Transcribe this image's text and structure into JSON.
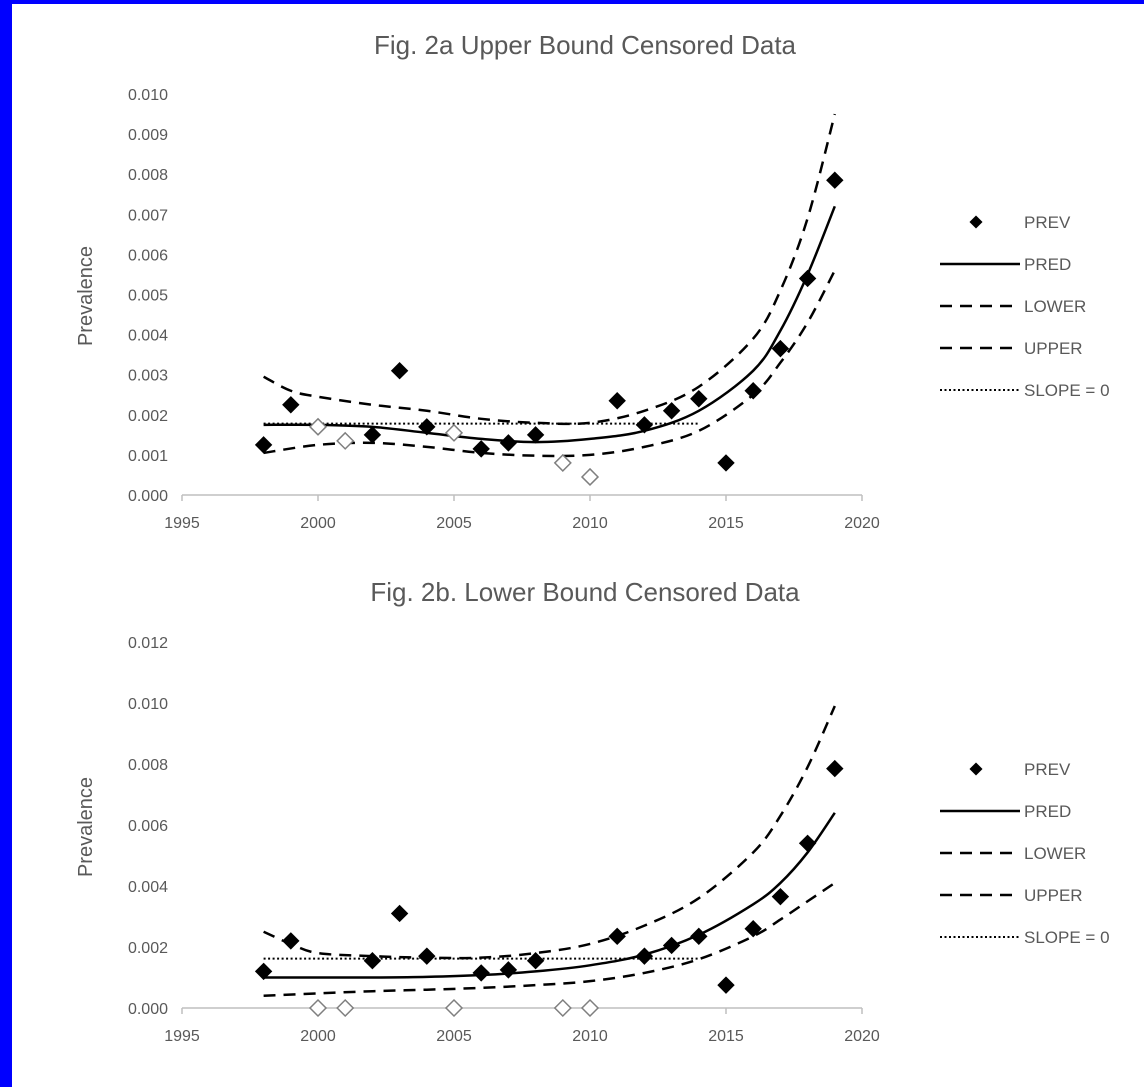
{
  "colors": {
    "background": "#0000ff",
    "panel": "#ffffff",
    "text": "#595959",
    "axis": "#bfbfbf",
    "ink": "#000000"
  },
  "chart_data": [
    {
      "type": "scatter",
      "title": "Fig. 2a Upper Bound Censored Data",
      "xlabel": "",
      "ylabel": "Prevalence",
      "xlim": [
        1995,
        2020
      ],
      "ylim": [
        0,
        0.01
      ],
      "xticks": [
        "1995",
        "2000",
        "2005",
        "2010",
        "2015",
        "2020"
      ],
      "yticks": [
        "0.000",
        "0.001",
        "0.002",
        "0.003",
        "0.004",
        "0.005",
        "0.006",
        "0.007",
        "0.008",
        "0.009",
        "0.010"
      ],
      "grid": false,
      "legend_position": "right",
      "series": [
        {
          "name": "PREV",
          "kind": "filled-diamond",
          "x": [
            1998,
            1999,
            2002,
            2003,
            2004,
            2006,
            2007,
            2008,
            2011,
            2012,
            2013,
            2014,
            2015,
            2016,
            2017,
            2018,
            2019
          ],
          "y": [
            0.00125,
            0.00225,
            0.0015,
            0.0031,
            0.0017,
            0.00115,
            0.0013,
            0.0015,
            0.00235,
            0.00175,
            0.0021,
            0.0024,
            0.0008,
            0.0026,
            0.00365,
            0.0054,
            0.00785
          ]
        },
        {
          "name": "",
          "kind": "open-diamond",
          "x": [
            2000,
            2001,
            2005,
            2009,
            2010
          ],
          "y": [
            0.0017,
            0.00135,
            0.00155,
            0.0008,
            0.00045
          ]
        },
        {
          "name": "PRED",
          "kind": "solid",
          "x": [
            1998,
            2000,
            2002,
            2004,
            2006,
            2008,
            2010,
            2012,
            2014,
            2016,
            2017,
            2018,
            2019
          ],
          "y": [
            0.00175,
            0.00175,
            0.0017,
            0.00155,
            0.0014,
            0.00132,
            0.0014,
            0.0016,
            0.0021,
            0.0031,
            0.0041,
            0.0055,
            0.0072
          ]
        },
        {
          "name": "LOWER",
          "kind": "dashed",
          "x": [
            1998,
            2000,
            2002,
            2004,
            2006,
            2008,
            2010,
            2012,
            2014,
            2016,
            2017,
            2018,
            2019
          ],
          "y": [
            0.00105,
            0.00125,
            0.0013,
            0.0012,
            0.00105,
            0.00098,
            0.001,
            0.0012,
            0.0016,
            0.0025,
            0.0033,
            0.0043,
            0.0056
          ]
        },
        {
          "name": "UPPER",
          "kind": "dashed",
          "x": [
            1998,
            1999,
            2000,
            2002,
            2004,
            2006,
            2008,
            2010,
            2012,
            2014,
            2016,
            2017,
            2018,
            2019
          ],
          "y": [
            0.00295,
            0.0026,
            0.00245,
            0.00225,
            0.0021,
            0.0019,
            0.0018,
            0.0018,
            0.0021,
            0.0027,
            0.0039,
            0.0051,
            0.0069,
            0.0095
          ]
        },
        {
          "name": "SLOPE = 0",
          "kind": "dotted",
          "x": [
            1998,
            2014
          ],
          "y": [
            0.00178,
            0.00178
          ]
        }
      ]
    },
    {
      "type": "scatter",
      "title": "Fig. 2b. Lower Bound Censored Data",
      "xlabel": "",
      "ylabel": "Prevalence",
      "xlim": [
        1995,
        2020
      ],
      "ylim": [
        0,
        0.012
      ],
      "xticks": [
        "1995",
        "2000",
        "2005",
        "2010",
        "2015",
        "2020"
      ],
      "yticks": [
        "0.000",
        "0.002",
        "0.004",
        "0.006",
        "0.008",
        "0.010",
        "0.012"
      ],
      "grid": false,
      "legend_position": "right",
      "series": [
        {
          "name": "PREV",
          "kind": "filled-diamond",
          "x": [
            1998,
            1999,
            2002,
            2003,
            2004,
            2006,
            2007,
            2008,
            2011,
            2012,
            2013,
            2014,
            2015,
            2016,
            2017,
            2018,
            2019
          ],
          "y": [
            0.0012,
            0.0022,
            0.00155,
            0.0031,
            0.0017,
            0.00115,
            0.00125,
            0.00155,
            0.00235,
            0.0017,
            0.00205,
            0.00235,
            0.00075,
            0.0026,
            0.00365,
            0.0054,
            0.00785
          ]
        },
        {
          "name": "",
          "kind": "open-diamond",
          "x": [
            2000,
            2001,
            2005,
            2009,
            2010
          ],
          "y": [
            0,
            0,
            0,
            0,
            0
          ]
        },
        {
          "name": "PRED",
          "kind": "solid",
          "x": [
            1998,
            2000,
            2002,
            2004,
            2006,
            2008,
            2010,
            2012,
            2014,
            2016,
            2017,
            2018,
            2019
          ],
          "y": [
            0.001,
            0.001,
            0.001,
            0.00102,
            0.00108,
            0.0012,
            0.0014,
            0.00175,
            0.0024,
            0.0034,
            0.0041,
            0.0051,
            0.0064
          ]
        },
        {
          "name": "LOWER",
          "kind": "dashed",
          "x": [
            1998,
            2000,
            2002,
            2004,
            2006,
            2008,
            2010,
            2012,
            2014,
            2016,
            2017,
            2018,
            2019
          ],
          "y": [
            0.0004,
            0.00048,
            0.00055,
            0.0006,
            0.00066,
            0.00075,
            0.00088,
            0.00115,
            0.0016,
            0.00235,
            0.0029,
            0.0035,
            0.0041
          ]
        },
        {
          "name": "UPPER",
          "kind": "dashed",
          "x": [
            1998,
            1999,
            2000,
            2002,
            2004,
            2006,
            2008,
            2010,
            2012,
            2014,
            2016,
            2017,
            2018,
            2019
          ],
          "y": [
            0.0025,
            0.0021,
            0.0018,
            0.0017,
            0.00165,
            0.00165,
            0.0018,
            0.0021,
            0.0027,
            0.0036,
            0.0051,
            0.0063,
            0.0079,
            0.0099
          ]
        },
        {
          "name": "SLOPE = 0",
          "kind": "dotted",
          "x": [
            1998,
            2014
          ],
          "y": [
            0.00162,
            0.00162
          ]
        }
      ]
    }
  ]
}
